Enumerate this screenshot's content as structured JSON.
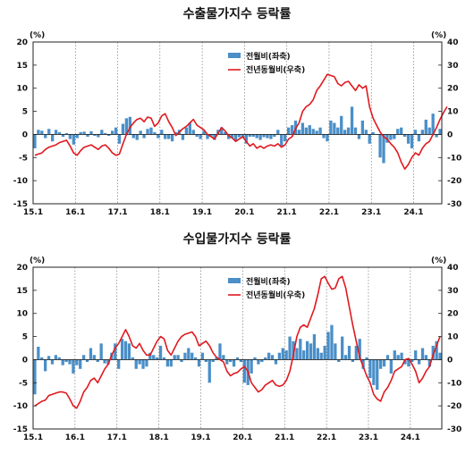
{
  "chart_data": [
    {
      "type": "bar+line",
      "title": "수출물가지수 등락률",
      "left_unit": "(%)",
      "right_unit": "(%)",
      "left_ylim": [
        -15,
        20
      ],
      "left_ticks": [
        -15,
        -10,
        -5,
        0,
        5,
        10,
        15,
        20
      ],
      "right_ylim": [
        -30,
        40
      ],
      "right_ticks": [
        -30,
        -20,
        -10,
        0,
        10,
        20,
        30,
        40
      ],
      "xlabels": [
        "15.1",
        "16.1",
        "17.1",
        "18.1",
        "19.1",
        "20.1",
        "21.1",
        "22.1",
        "23.1",
        "24.1"
      ],
      "grid": "dotted vertical lines at each January",
      "legend": "top-center",
      "bar_color": "#4a8fc8",
      "line_color": "#e0191f",
      "series": [
        {
          "name": "전월비(좌축)",
          "kind": "bar",
          "axis": "left",
          "values": [
            -3.0,
            1.0,
            0.8,
            -0.8,
            1.2,
            -1.5,
            1.0,
            0.5,
            -0.5,
            0.3,
            -1.0,
            -2.2,
            -0.8,
            0.5,
            0.6,
            -0.5,
            0.7,
            -0.3,
            -0.6,
            1.0,
            0.3,
            -0.3,
            0.8,
            1.5,
            -2.0,
            2.3,
            3.5,
            3.8,
            -0.8,
            -1.2,
            0.8,
            -0.8,
            1.2,
            1.5,
            0.5,
            -0.8,
            1.0,
            -1.0,
            -1.0,
            -1.5,
            0.5,
            1.0,
            -1.2,
            1.5,
            2.5,
            1.0,
            -0.5,
            -1.0,
            0.8,
            -1.0,
            -0.5,
            -1.2,
            1.0,
            1.5,
            0.5,
            -1.0,
            -0.8,
            -1.5,
            -0.6,
            -0.8,
            -2.0,
            -0.5,
            -0.5,
            -0.8,
            -1.2,
            -0.6,
            -0.8,
            -1.0,
            -0.5,
            1.0,
            -2.5,
            -1.5,
            1.5,
            2.0,
            3.0,
            1.0,
            2.5,
            1.5,
            2.0,
            1.2,
            0.8,
            1.5,
            -0.8,
            -1.5,
            3.0,
            2.5,
            1.5,
            4.0,
            1.0,
            1.5,
            6.0,
            1.5,
            -1.0,
            3.0,
            1.0,
            -2.0,
            0.5,
            0.0,
            -5.0,
            -6.2,
            -1.8,
            -1.2,
            -1.0,
            1.2,
            1.5,
            -0.5,
            -2.0,
            -3.0,
            1.0,
            -1.5,
            1.0,
            3.2,
            1.5,
            4.5,
            -0.6,
            1.2
          ]
        },
        {
          "name": "전년동월비(우축)",
          "kind": "line",
          "axis": "right",
          "values": [
            -9.0,
            -8.5,
            -8.0,
            -6.5,
            -5.5,
            -5.0,
            -4.5,
            -3.5,
            -3.0,
            -2.5,
            -5.0,
            -8.0,
            -9.0,
            -7.0,
            -5.5,
            -5.0,
            -4.5,
            -5.5,
            -6.5,
            -5.0,
            -4.5,
            -6.0,
            -8.0,
            -9.0,
            -8.5,
            -4.0,
            0.0,
            3.0,
            5.0,
            6.5,
            7.0,
            5.5,
            7.5,
            7.0,
            3.5,
            5.0,
            8.0,
            9.0,
            5.5,
            3.0,
            -0.5,
            1.0,
            2.5,
            3.5,
            5.0,
            6.5,
            4.0,
            3.0,
            2.0,
            0.0,
            -1.0,
            -2.0,
            0.5,
            3.0,
            1.5,
            -0.5,
            -1.5,
            -3.0,
            -2.0,
            -1.0,
            -3.0,
            -5.0,
            -4.0,
            -6.0,
            -5.0,
            -6.0,
            -5.0,
            -4.5,
            -5.0,
            -4.0,
            -5.5,
            -4.5,
            -2.0,
            -1.0,
            2.5,
            5.0,
            10.0,
            12.0,
            13.0,
            15.0,
            19.0,
            21.0,
            23.5,
            26.0,
            25.5,
            25.0,
            22.0,
            21.0,
            22.5,
            23.0,
            21.0,
            19.0,
            21.5,
            20.0,
            21.0,
            12.0,
            7.0,
            4.0,
            1.0,
            -1.0,
            -2.0,
            -4.0,
            -5.5,
            -8.0,
            -12.0,
            -15.0,
            -13.0,
            -10.0,
            -8.0,
            -9.0,
            -6.0,
            -4.0,
            -3.0,
            0.0,
            3.0,
            6.5,
            9.5,
            12.0
          ]
        }
      ]
    },
    {
      "type": "bar+line",
      "title": "수입물가지수 등락률",
      "left_unit": "(%)",
      "right_unit": "(%)",
      "left_ylim": [
        -15,
        20
      ],
      "left_ticks": [
        -15,
        -10,
        -5,
        0,
        5,
        10,
        15,
        20
      ],
      "right_ylim": [
        -30,
        40
      ],
      "right_ticks": [
        -30,
        -20,
        -10,
        0,
        10,
        20,
        30,
        40
      ],
      "xlabels": [
        "15.1",
        "16.1",
        "17.1",
        "18.1",
        "19.1",
        "20.1",
        "21.1",
        "22.1",
        "23.1",
        "24.1"
      ],
      "grid": "dotted vertical lines at each January",
      "legend": "top-center",
      "bar_color": "#4a8fc8",
      "line_color": "#e0191f",
      "series": [
        {
          "name": "전월비(좌축)",
          "kind": "bar",
          "axis": "left",
          "values": [
            -7.5,
            2.8,
            0.5,
            -2.5,
            0.8,
            -1.0,
            1.0,
            0.5,
            -1.2,
            -0.5,
            -1.0,
            -3.0,
            -1.2,
            -2.0,
            1.0,
            -0.5,
            2.5,
            1.0,
            -0.5,
            3.5,
            -0.8,
            -1.0,
            1.5,
            3.5,
            -2.0,
            4.5,
            4.0,
            3.5,
            0.5,
            -2.0,
            -1.0,
            -2.0,
            -1.5,
            1.5,
            1.0,
            0.5,
            3.0,
            0.5,
            -1.5,
            -1.5,
            1.0,
            1.0,
            -0.5,
            1.5,
            2.5,
            1.5,
            0.5,
            -1.5,
            1.5,
            -0.5,
            -5.0,
            -0.5,
            0.5,
            3.5,
            1.0,
            -1.0,
            -0.5,
            -1.5,
            0.5,
            -0.5,
            -5.0,
            -5.5,
            -3.0,
            0.5,
            -1.0,
            -0.5,
            0.5,
            1.5,
            1.0,
            -1.0,
            1.5,
            2.5,
            2.0,
            5.0,
            4.0,
            2.5,
            4.5,
            2.0,
            4.0,
            3.5,
            5.5,
            2.5,
            1.5,
            3.0,
            6.0,
            7.5,
            3.5,
            -0.5,
            5.0,
            1.0,
            3.0,
            -0.5,
            3.0,
            4.5,
            -2.0,
            0.5,
            -4.0,
            -5.5,
            -6.5,
            -2.0,
            -1.5,
            1.0,
            -3.0,
            2.0,
            1.0,
            1.5,
            -1.0,
            -1.5,
            -0.5,
            2.0,
            -1.0,
            2.5,
            1.0,
            -1.5,
            3.0,
            4.0,
            1.5
          ]
        },
        {
          "name": "전년동월비(우축)",
          "kind": "line",
          "axis": "right",
          "values": [
            -20.0,
            -19.0,
            -18.0,
            -17.5,
            -15.5,
            -15.0,
            -14.5,
            -14.0,
            -14.0,
            -14.5,
            -17.0,
            -20.0,
            -21.0,
            -18.0,
            -14.0,
            -12.0,
            -9.0,
            -8.0,
            -10.0,
            -7.0,
            -4.0,
            -2.0,
            2.0,
            5.0,
            7.0,
            10.0,
            13.0,
            10.0,
            6.0,
            5.0,
            7.0,
            4.0,
            2.0,
            2.0,
            5.0,
            8.0,
            10.0,
            9.0,
            4.0,
            2.0,
            5.0,
            8.0,
            10.0,
            11.0,
            11.5,
            12.0,
            10.0,
            6.0,
            7.0,
            8.0,
            6.0,
            3.0,
            1.0,
            0.0,
            -1.0,
            -5.0,
            -7.0,
            -6.0,
            -5.5,
            -4.0,
            -3.0,
            -5.0,
            -10.0,
            -12.0,
            -14.0,
            -13.0,
            -11.0,
            -10.0,
            -9.0,
            -11.0,
            -11.5,
            -11.0,
            -9.0,
            -5.0,
            2.0,
            10.0,
            14.0,
            15.0,
            14.0,
            18.0,
            22.0,
            28.0,
            35.0,
            36.0,
            33.0,
            30.5,
            31.0,
            35.0,
            36.0,
            31.0,
            23.0,
            15.0,
            8.0,
            1.0,
            -3.0,
            -7.0,
            -10.0,
            -15.0,
            -17.0,
            -18.0,
            -14.0,
            -12.0,
            -9.0,
            -5.0,
            -4.0,
            -3.0,
            0.0,
            0.5,
            -2.0,
            -5.0,
            -10.0,
            -8.0,
            -5.0,
            -3.0,
            2.0,
            6.0,
            10.0
          ]
        }
      ]
    }
  ]
}
